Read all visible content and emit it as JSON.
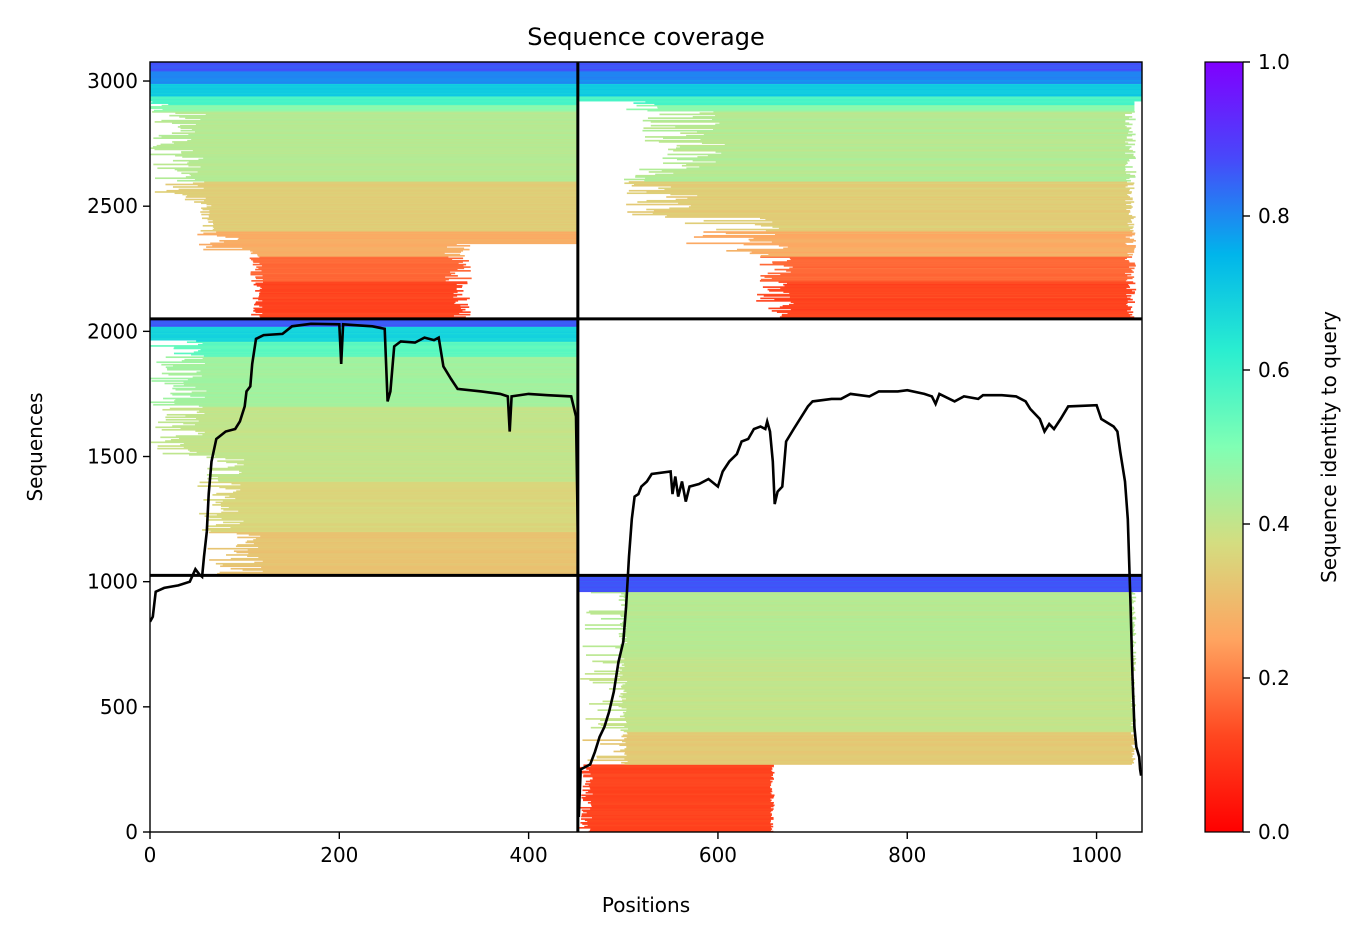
{
  "chart_data": {
    "type": "heatmap",
    "title": "Sequence coverage",
    "xlabel": "Positions",
    "ylabel": "Sequences",
    "xlim": [
      0,
      1048
    ],
    "ylim": [
      0,
      3076
    ],
    "xticks": [
      0,
      200,
      400,
      600,
      800,
      1000
    ],
    "yticks": [
      0,
      500,
      1000,
      1500,
      2000,
      2500,
      3000
    ],
    "colorbar": {
      "label": "Sequence identity to query",
      "range": [
        0,
        1
      ],
      "ticks": [
        "0.0",
        "0.2",
        "0.4",
        "0.6",
        "0.8",
        "1.0"
      ],
      "colormap": "rainbow_r"
    },
    "chain_boundaries": {
      "x": [
        452
      ],
      "y": [
        1025,
        2050
      ]
    },
    "coverage_line": [
      [
        0,
        840
      ],
      [
        3,
        860
      ],
      [
        6,
        960
      ],
      [
        15,
        975
      ],
      [
        30,
        985
      ],
      [
        42,
        1000
      ],
      [
        48,
        1050
      ],
      [
        52,
        1030
      ],
      [
        55,
        1020
      ],
      [
        57,
        1100
      ],
      [
        60,
        1200
      ],
      [
        62,
        1350
      ],
      [
        65,
        1480
      ],
      [
        70,
        1570
      ],
      [
        80,
        1600
      ],
      [
        90,
        1610
      ],
      [
        95,
        1640
      ],
      [
        100,
        1700
      ],
      [
        102,
        1760
      ],
      [
        106,
        1780
      ],
      [
        108,
        1870
      ],
      [
        112,
        1970
      ],
      [
        120,
        1985
      ],
      [
        140,
        1990
      ],
      [
        150,
        2020
      ],
      [
        170,
        2030
      ],
      [
        200,
        2028
      ],
      [
        202,
        1870
      ],
      [
        204,
        2028
      ],
      [
        215,
        2025
      ],
      [
        235,
        2020
      ],
      [
        248,
        2010
      ],
      [
        251,
        1720
      ],
      [
        254,
        1760
      ],
      [
        258,
        1940
      ],
      [
        265,
        1960
      ],
      [
        280,
        1955
      ],
      [
        290,
        1975
      ],
      [
        300,
        1965
      ],
      [
        305,
        1975
      ],
      [
        310,
        1860
      ],
      [
        318,
        1810
      ],
      [
        325,
        1770
      ],
      [
        350,
        1760
      ],
      [
        370,
        1750
      ],
      [
        378,
        1740
      ],
      [
        380,
        1600
      ],
      [
        382,
        1740
      ],
      [
        400,
        1750
      ],
      [
        420,
        1745
      ],
      [
        445,
        1740
      ],
      [
        450,
        1660
      ],
      [
        452,
        1200
      ],
      [
        453,
        60
      ],
      [
        455,
        250
      ],
      [
        460,
        260
      ],
      [
        465,
        270
      ],
      [
        470,
        320
      ],
      [
        475,
        380
      ],
      [
        480,
        420
      ],
      [
        485,
        480
      ],
      [
        490,
        560
      ],
      [
        495,
        680
      ],
      [
        500,
        760
      ],
      [
        503,
        900
      ],
      [
        506,
        1100
      ],
      [
        509,
        1250
      ],
      [
        512,
        1340
      ],
      [
        516,
        1350
      ],
      [
        519,
        1380
      ],
      [
        525,
        1400
      ],
      [
        530,
        1430
      ],
      [
        550,
        1440
      ],
      [
        552,
        1350
      ],
      [
        555,
        1420
      ],
      [
        558,
        1340
      ],
      [
        562,
        1400
      ],
      [
        566,
        1320
      ],
      [
        570,
        1380
      ],
      [
        580,
        1390
      ],
      [
        590,
        1410
      ],
      [
        600,
        1380
      ],
      [
        605,
        1440
      ],
      [
        612,
        1480
      ],
      [
        620,
        1510
      ],
      [
        625,
        1560
      ],
      [
        632,
        1570
      ],
      [
        638,
        1610
      ],
      [
        645,
        1620
      ],
      [
        650,
        1610
      ],
      [
        652,
        1640
      ],
      [
        655,
        1600
      ],
      [
        658,
        1480
      ],
      [
        660,
        1310
      ],
      [
        663,
        1360
      ],
      [
        668,
        1380
      ],
      [
        672,
        1560
      ],
      [
        680,
        1610
      ],
      [
        695,
        1700
      ],
      [
        700,
        1720
      ],
      [
        720,
        1730
      ],
      [
        730,
        1730
      ],
      [
        740,
        1750
      ],
      [
        760,
        1740
      ],
      [
        770,
        1760
      ],
      [
        790,
        1760
      ],
      [
        800,
        1765
      ],
      [
        818,
        1750
      ],
      [
        826,
        1740
      ],
      [
        830,
        1710
      ],
      [
        834,
        1750
      ],
      [
        850,
        1720
      ],
      [
        860,
        1740
      ],
      [
        875,
        1730
      ],
      [
        880,
        1745
      ],
      [
        900,
        1745
      ],
      [
        915,
        1740
      ],
      [
        925,
        1720
      ],
      [
        930,
        1690
      ],
      [
        940,
        1650
      ],
      [
        945,
        1600
      ],
      [
        950,
        1630
      ],
      [
        955,
        1610
      ],
      [
        962,
        1650
      ],
      [
        970,
        1700
      ],
      [
        1000,
        1705
      ],
      [
        1005,
        1650
      ],
      [
        1018,
        1620
      ],
      [
        1022,
        1600
      ],
      [
        1025,
        1520
      ],
      [
        1030,
        1400
      ],
      [
        1033,
        1250
      ],
      [
        1036,
        900
      ],
      [
        1038,
        620
      ],
      [
        1040,
        420
      ],
      [
        1042,
        340
      ],
      [
        1045,
        300
      ],
      [
        1046,
        250
      ],
      [
        1047,
        225
      ]
    ]
  }
}
